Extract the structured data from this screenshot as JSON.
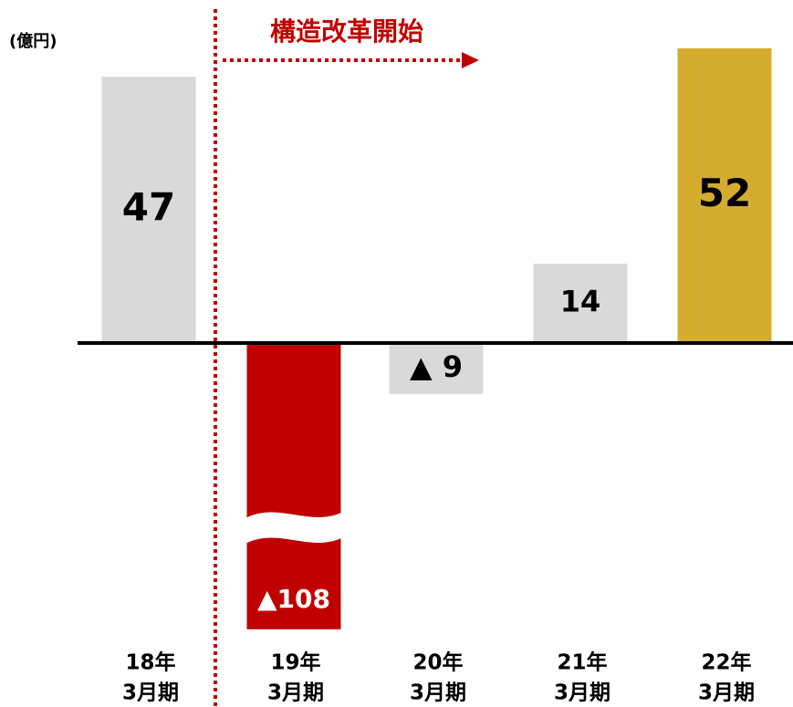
{
  "chart_data": {
    "type": "bar",
    "unit_label": "(億円)",
    "annotation": "構造改革開始",
    "categories": [
      [
        "18年",
        "3月期"
      ],
      [
        "19年",
        "3月期"
      ],
      [
        "20年",
        "3月期"
      ],
      [
        "21年",
        "3月期"
      ],
      [
        "22年",
        "3月期"
      ]
    ],
    "values": [
      47,
      -108,
      -9,
      14,
      52
    ],
    "value_labels": [
      "47",
      "▲108",
      "▲ 9",
      "14",
      "52"
    ],
    "colors": [
      "#d9d9d9",
      "#c00000",
      "#d9d9d9",
      "#d9d9d9",
      "#d4ac2e"
    ],
    "ylim": [
      -51,
      52
    ],
    "axis_break": true
  }
}
